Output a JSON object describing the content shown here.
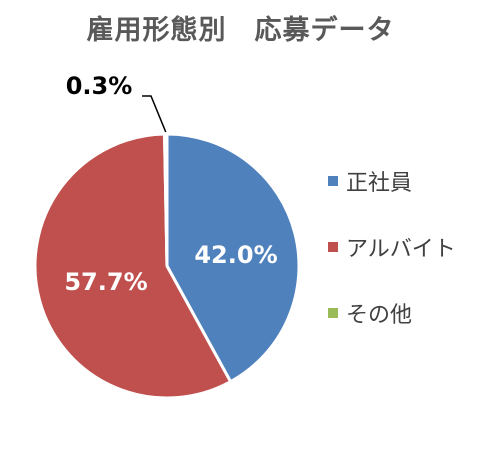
{
  "chart_data": {
    "type": "pie",
    "title": "雇用形態別　応募データ",
    "start_angle_deg": 0,
    "direction": "clockwise",
    "series": [
      {
        "name": "正社員",
        "value": 42.0,
        "label": "42.0%",
        "color": "#4F81BD"
      },
      {
        "name": "アルバイト",
        "value": 57.7,
        "label": "57.7%",
        "color": "#C0504D"
      },
      {
        "name": "その他",
        "value": 0.3,
        "label": "0.3%",
        "color": "#9BBB59"
      }
    ],
    "legend_position": "right"
  }
}
